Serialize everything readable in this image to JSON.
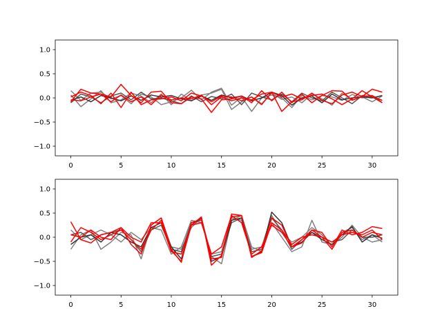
{
  "chart_data": [
    {
      "type": "line",
      "x": [
        0,
        1,
        2,
        3,
        4,
        5,
        6,
        7,
        8,
        9,
        10,
        11,
        12,
        13,
        14,
        15,
        16,
        17,
        18,
        19,
        20,
        21,
        22,
        23,
        24,
        25,
        26,
        27,
        28,
        29,
        30,
        31
      ],
      "xlim": [
        -1.55,
        32.55
      ],
      "ylim": [
        -1.2,
        1.2
      ],
      "xticks": [
        0,
        5,
        10,
        15,
        20,
        25,
        30
      ],
      "yticks": [
        -1.0,
        -0.5,
        0.0,
        0.5,
        1.0
      ],
      "xtick_labels": [
        "0",
        "5",
        "10",
        "15",
        "20",
        "25",
        "30"
      ],
      "ytick_labels": [
        "−1.0",
        "−0.5",
        "0.0",
        "0.5",
        "1.0"
      ],
      "grid": false,
      "series": [
        {
          "color": "#808080",
          "values": [
            0.15,
            -0.05,
            0.1,
            0.12,
            -0.02,
            0.05,
            -0.12,
            0.08,
            0.02,
            -0.14,
            -0.08,
            0.0,
            0.16,
            -0.04,
            0.12,
            0.2,
            -0.15,
            0.02,
            -0.28,
            0.0,
            0.06,
            0.0,
            -0.2,
            0.05,
            -0.04,
            0.05,
            0.02,
            -0.05,
            0.07,
            0.0,
            0.05,
            -0.05
          ]
        },
        {
          "color": "#808080",
          "values": [
            0.06,
            -0.18,
            -0.02,
            0.15,
            -0.1,
            -0.04,
            0.1,
            0.04,
            -0.1,
            0.08,
            -0.14,
            0.08,
            -0.06,
            0.06,
            0.1,
            0.18,
            -0.24,
            -0.08,
            0.02,
            -0.12,
            0.1,
            -0.03,
            0.02,
            -0.1,
            0.08,
            -0.02,
            -0.15,
            0.1,
            -0.04,
            0.02,
            -0.08,
            0.04
          ]
        },
        {
          "color": "#555555",
          "values": [
            -0.1,
            0.08,
            0.02,
            -0.1,
            0.04,
            0.1,
            -0.04,
            0.12,
            -0.02,
            0.0,
            -0.06,
            -0.12,
            0.04,
            -0.08,
            0.03,
            -0.02,
            0.08,
            -0.14,
            0.1,
            0.02,
            -0.04,
            0.08,
            -0.08,
            0.1,
            0.0,
            -0.06,
            0.12,
            0.0,
            -0.12,
            0.05,
            0.02,
            -0.1
          ]
        },
        {
          "color": "#333333",
          "values": [
            -0.05,
            0.02,
            -0.08,
            0.05,
            0.0,
            -0.06,
            0.04,
            -0.05,
            0.06,
            0.02,
            0.05,
            -0.02,
            -0.06,
            0.04,
            -0.05,
            0.06,
            0.0,
            0.04,
            -0.06,
            0.0,
            0.12,
            0.05,
            -0.15,
            0.0,
            0.04,
            -0.1,
            0.08,
            -0.04,
            0.0,
            0.02,
            0.0,
            0.05
          ]
        },
        {
          "color": "#ff0000",
          "values": [
            -0.08,
            0.18,
            0.1,
            0.08,
            0.02,
            0.28,
            0.05,
            -0.1,
            0.12,
            0.14,
            -0.1,
            -0.12,
            0.02,
            -0.02,
            -0.3,
            -0.04,
            -0.02,
            0.04,
            -0.1,
            0.15,
            -0.06,
            0.12,
            -0.1,
            0.08,
            -0.1,
            0.05,
            0.15,
            0.14,
            -0.05,
            0.03,
            0.18,
            0.12
          ]
        },
        {
          "color": "#ff0000",
          "values": [
            0.02,
            0.12,
            0.05,
            -0.12,
            0.1,
            -0.2,
            0.12,
            -0.14,
            -0.04,
            -0.02,
            0.02,
            -0.06,
            0.1,
            0.04,
            -0.08,
            0.04,
            0.02,
            -0.06,
            0.02,
            -0.14,
            0.12,
            -0.28,
            -0.08,
            -0.04,
            0.1,
            -0.05,
            -0.12,
            0.06,
            0.12,
            0.03,
            0.05,
            -0.1
          ]
        },
        {
          "color": "#ff0000",
          "values": [
            -0.04,
            -0.06,
            0.02,
            0.08,
            -0.08,
            0.06,
            -0.08,
            0.02,
            -0.14,
            0.06,
            -0.04,
            0.0,
            -0.02,
            0.06,
            -0.14,
            0.02,
            -0.06,
            0.0,
            -0.04,
            0.08,
            0.12,
            0.02,
            0.08,
            -0.02,
            0.05,
            0.08,
            -0.02,
            -0.14,
            -0.02,
            0.15,
            0.02,
            -0.05
          ]
        }
      ]
    },
    {
      "type": "line",
      "x": [
        0,
        1,
        2,
        3,
        4,
        5,
        6,
        7,
        8,
        9,
        10,
        11,
        12,
        13,
        14,
        15,
        16,
        17,
        18,
        19,
        20,
        21,
        22,
        23,
        24,
        25,
        26,
        27,
        28,
        29,
        30,
        31
      ],
      "xlim": [
        -1.55,
        32.55
      ],
      "ylim": [
        -1.2,
        1.2
      ],
      "xticks": [
        0,
        5,
        10,
        15,
        20,
        25,
        30
      ],
      "yticks": [
        -1.0,
        -0.5,
        0.0,
        0.5,
        1.0
      ],
      "xtick_labels": [
        "0",
        "5",
        "10",
        "15",
        "20",
        "25",
        "30"
      ],
      "ytick_labels": [
        "−1.0",
        "−0.5",
        "0.0",
        "0.5",
        "1.0"
      ],
      "grid": false,
      "series": [
        {
          "color": "#808080",
          "values": [
            -0.25,
            0.05,
            0.15,
            -0.25,
            -0.1,
            0.1,
            0.05,
            -0.45,
            0.25,
            0.4,
            -0.2,
            -0.25,
            0.2,
            0.4,
            -0.4,
            -0.55,
            0.35,
            0.45,
            -0.2,
            -0.3,
            0.3,
            0.0,
            -0.3,
            -0.2,
            0.35,
            -0.1,
            -0.15,
            0.0,
            0.25,
            0.0,
            -0.1,
            -0.05
          ]
        },
        {
          "color": "#808080",
          "values": [
            0.15,
            -0.05,
            0.05,
            0.15,
            0.05,
            -0.1,
            0.1,
            -0.05,
            0.2,
            0.15,
            -0.35,
            -0.2,
            0.35,
            0.3,
            -0.35,
            -0.3,
            0.4,
            0.35,
            -0.25,
            -0.2,
            0.45,
            0.1,
            -0.1,
            0.0,
            0.2,
            0.05,
            -0.2,
            0.1,
            0.2,
            -0.05,
            0.05,
            -0.1
          ]
        },
        {
          "color": "#555555",
          "values": [
            0.05,
            0.1,
            -0.05,
            0.05,
            0.1,
            0.15,
            -0.05,
            -0.3,
            0.15,
            0.25,
            -0.25,
            -0.3,
            0.3,
            0.35,
            -0.4,
            -0.35,
            0.3,
            0.4,
            -0.3,
            -0.25,
            0.4,
            0.15,
            -0.25,
            -0.05,
            0.1,
            0.0,
            -0.1,
            -0.05,
            0.15,
            0.0,
            0.0,
            0.05
          ]
        },
        {
          "color": "#333333",
          "values": [
            -0.15,
            0.0,
            0.05,
            -0.1,
            0.1,
            0.05,
            -0.1,
            -0.2,
            0.2,
            0.3,
            -0.2,
            -0.45,
            0.25,
            0.4,
            -0.5,
            -0.4,
            0.35,
            0.4,
            -0.4,
            -0.3,
            0.52,
            0.3,
            -0.2,
            -0.1,
            0.1,
            -0.05,
            -0.15,
            0.05,
            0.22,
            -0.1,
            0.05,
            -0.02
          ]
        },
        {
          "color": "#ff0000",
          "values": [
            0.32,
            -0.05,
            -0.12,
            0.05,
            0.1,
            0.2,
            -0.15,
            -0.35,
            0.25,
            0.4,
            -0.25,
            -0.52,
            0.3,
            0.38,
            -0.45,
            -0.42,
            0.48,
            0.45,
            -0.42,
            -0.28,
            0.4,
            0.25,
            -0.2,
            -0.12,
            0.15,
            0.1,
            -0.2,
            0.15,
            0.05,
            0.1,
            0.22,
            0.18
          ]
        },
        {
          "color": "#ff0000",
          "values": [
            -0.1,
            0.2,
            0.1,
            -0.05,
            0.05,
            0.15,
            -0.05,
            -0.25,
            0.15,
            0.35,
            -0.28,
            -0.5,
            0.25,
            0.42,
            -0.58,
            -0.38,
            0.42,
            0.45,
            -0.4,
            -0.32,
            0.3,
            0.15,
            -0.15,
            0.0,
            0.05,
            0.0,
            -0.25,
            0.1,
            0.15,
            0.0,
            0.1,
            0.05
          ]
        },
        {
          "color": "#ff0000",
          "values": [
            0.05,
            0.0,
            0.15,
            0.0,
            -0.05,
            0.2,
            0.0,
            -0.1,
            0.3,
            0.3,
            -0.3,
            -0.35,
            0.25,
            0.3,
            -0.35,
            -0.2,
            0.45,
            0.3,
            -0.35,
            -0.2,
            0.25,
            0.1,
            -0.2,
            -0.05,
            0.15,
            0.0,
            -0.1,
            0.05,
            0.1,
            0.05,
            0.15,
            -0.05
          ]
        }
      ]
    }
  ]
}
